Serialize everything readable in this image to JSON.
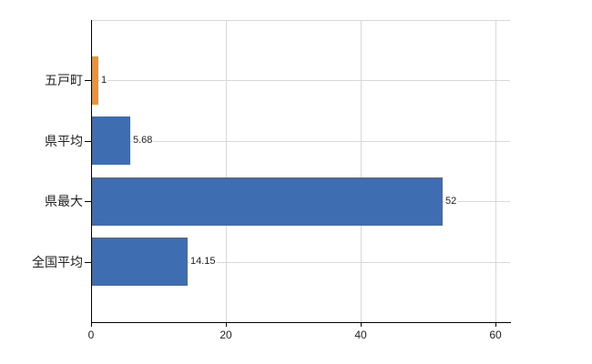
{
  "chart_data": {
    "type": "bar",
    "orientation": "horizontal",
    "title": "",
    "xlabel": "",
    "ylabel": "",
    "categories": [
      "五戸町",
      "県平均",
      "県最大",
      "全国平均"
    ],
    "values": [
      1,
      5.68,
      52,
      14.15
    ],
    "value_labels": [
      "1",
      "5.68",
      "52",
      "14.15"
    ],
    "bar_colors": [
      "#ee9133",
      "#3e6db2",
      "#3e6db2",
      "#3e6db2"
    ],
    "xticks": [
      0,
      20,
      40,
      60
    ],
    "xtick_labels": [
      "0",
      "20",
      "40",
      "60"
    ],
    "xlim": [
      0,
      62.2
    ],
    "grid": true,
    "legend": "none"
  },
  "colors": {
    "background": "#ffffff",
    "axis": "#000000",
    "grid": "#d8d8d8",
    "text": "#222222",
    "bar_blue": "#3e6db2",
    "bar_orange": "#ee9133"
  }
}
